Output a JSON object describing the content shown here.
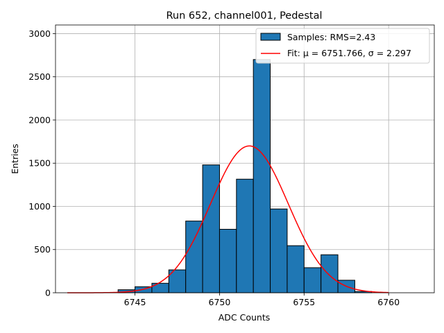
{
  "chart_data": {
    "type": "bar",
    "title": "Run 652, channel001, Pedestal",
    "xlabel": "ADC Counts",
    "ylabel": "Entries",
    "xlim": [
      6740.3,
      6762.7
    ],
    "ylim": [
      0,
      3100
    ],
    "xticks": [
      6745,
      6750,
      6755,
      6760
    ],
    "yticks": [
      0,
      500,
      1000,
      1500,
      2000,
      2500,
      3000
    ],
    "grid": true,
    "legend_position": "top-right",
    "histogram": {
      "name": "Samples: RMS=2.43",
      "color": "#1f77b4",
      "edgecolor": "#000000",
      "bin_width": 1,
      "bins": [
        {
          "x0": 6744,
          "count": 35
        },
        {
          "x0": 6745,
          "count": 70
        },
        {
          "x0": 6746,
          "count": 110
        },
        {
          "x0": 6747,
          "count": 265
        },
        {
          "x0": 6748,
          "count": 830
        },
        {
          "x0": 6749,
          "count": 1480
        },
        {
          "x0": 6750,
          "count": 735
        },
        {
          "x0": 6751,
          "count": 1315
        },
        {
          "x0": 6752,
          "count": 2700
        },
        {
          "x0": 6753,
          "count": 970
        },
        {
          "x0": 6754,
          "count": 545
        },
        {
          "x0": 6755,
          "count": 290
        },
        {
          "x0": 6756,
          "count": 440
        },
        {
          "x0": 6757,
          "count": 145
        },
        {
          "x0": 6758,
          "count": 15
        }
      ]
    },
    "fit": {
      "name": "Fit: μ = 6751.766, σ = 2.297",
      "color": "#ff0000",
      "type": "gaussian",
      "mu": 6751.766,
      "sigma": 2.297,
      "amplitude": 1700,
      "x_range": [
        6741,
        6760
      ]
    }
  }
}
